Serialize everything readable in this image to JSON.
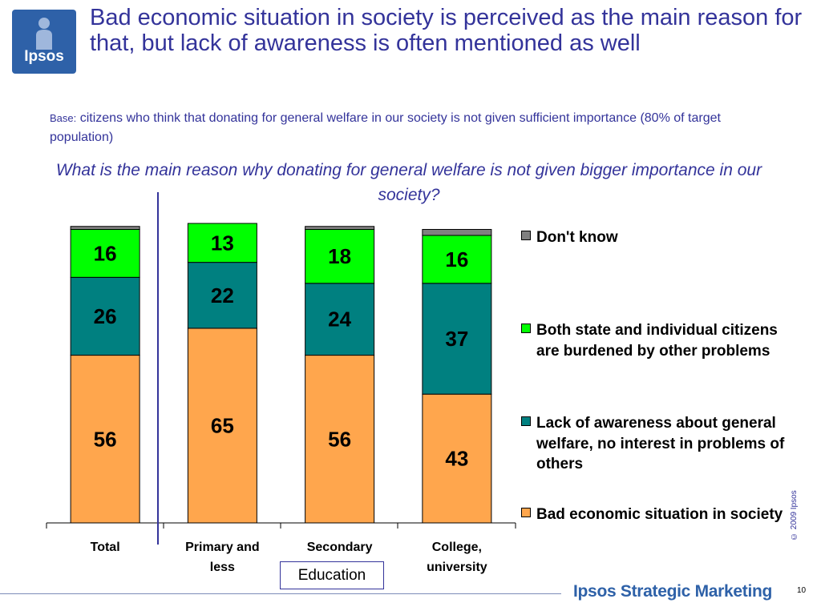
{
  "brand": {
    "logo_text": "Ipsos",
    "footer_text": "Ipsos Strategic Marketing"
  },
  "title": "Bad economic situation in society is perceived as the main reason for that, but lack of awareness is often mentioned as well",
  "base": {
    "label": "Base:",
    "text": "citizens who think that donating for general welfare in our society is not given sufficient importance (80% of target population)"
  },
  "question": "What is the main reason why donating for general welfare is not given bigger importance in our society?",
  "education_label": "Education",
  "copyright": "© 2009 Ipsos",
  "page_number": "10",
  "chart_data": {
    "type": "bar",
    "stacked": true,
    "categories": [
      "Total",
      "Primary and less",
      "Secondary",
      "College, university"
    ],
    "series": [
      {
        "name": "Bad economic situation in society",
        "color": "#ffa64d",
        "values": [
          56,
          65,
          56,
          43
        ],
        "labels": [
          "56",
          "65",
          "56",
          "43"
        ]
      },
      {
        "name": "Lack of awareness about general welfare, no interest in problems of others",
        "color": "#008080",
        "values": [
          26,
          22,
          24,
          37
        ],
        "labels": [
          "26",
          "22",
          "24",
          "37"
        ]
      },
      {
        "name": "Both state and individual citizens are burdened by other problems",
        "color": "#00ff00",
        "values": [
          16,
          13,
          18,
          16
        ],
        "labels": [
          "16",
          "13",
          "18",
          "16"
        ]
      },
      {
        "name": "Don't know",
        "color": "#808080",
        "values": [
          1,
          0,
          1,
          2
        ],
        "labels": [
          "",
          "",
          "",
          ""
        ]
      }
    ],
    "ylim": [
      0,
      100
    ],
    "legend_placement": "right",
    "grid": false
  }
}
